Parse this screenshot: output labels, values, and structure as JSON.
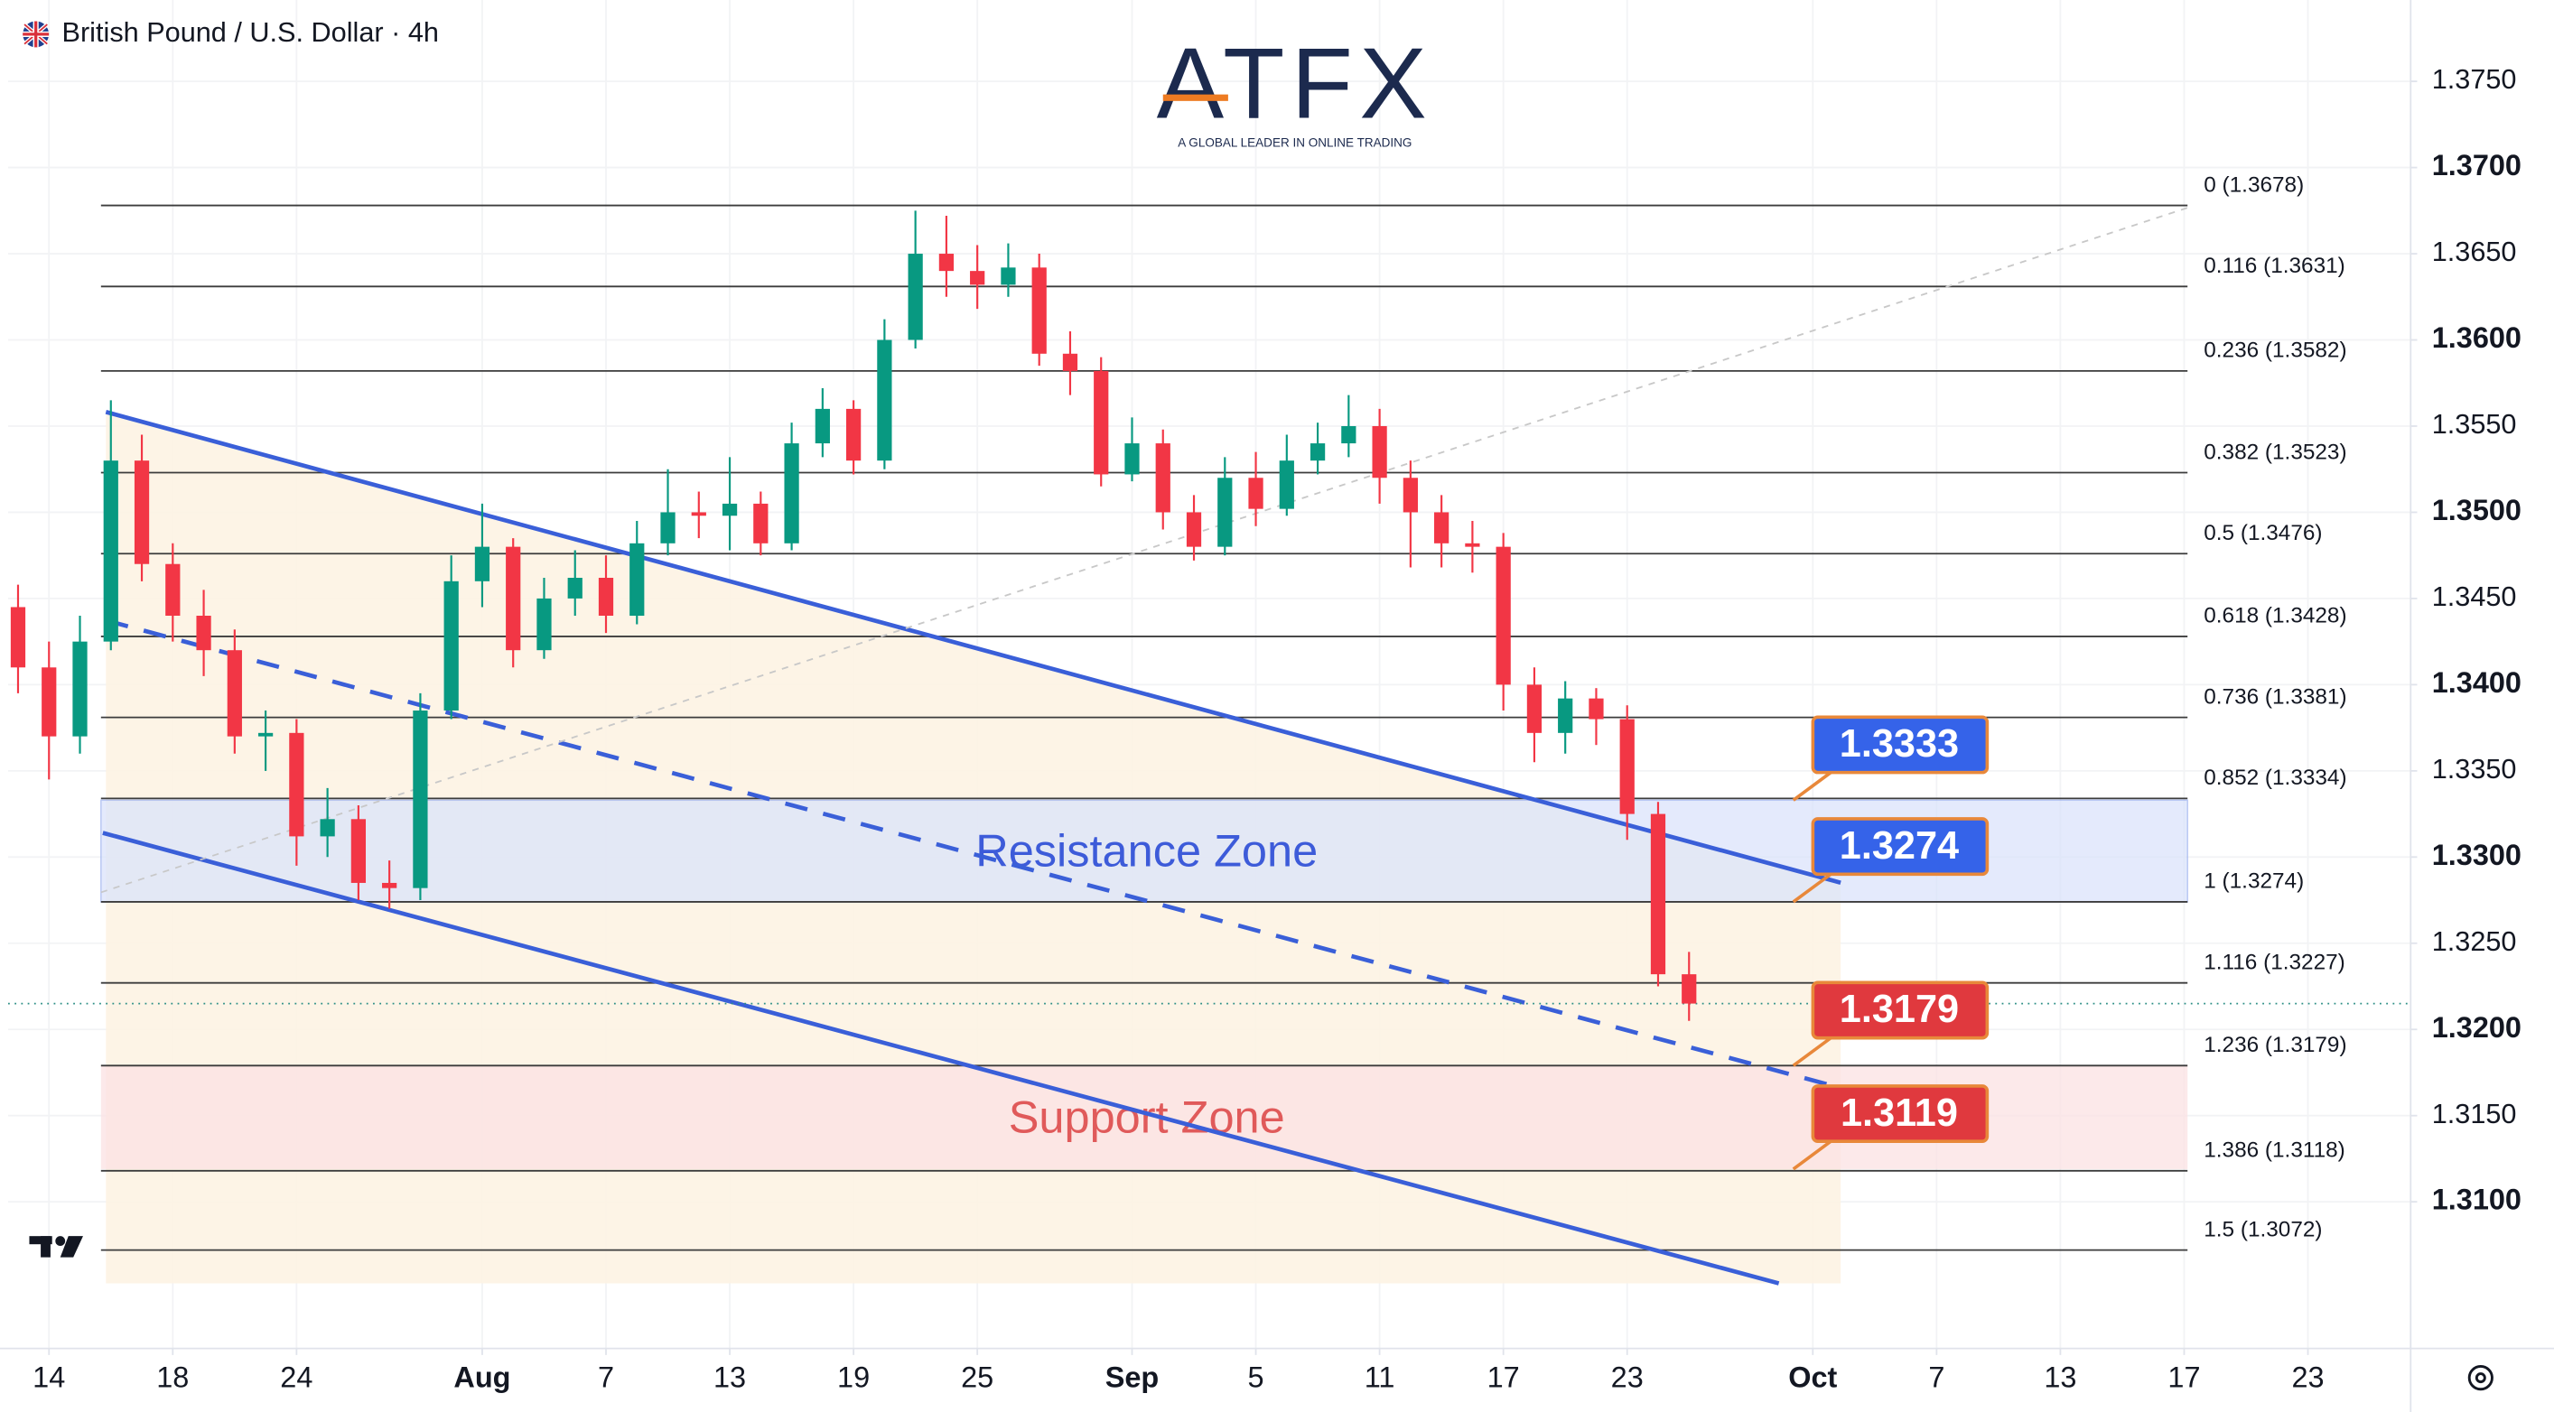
{
  "chart_data": {
    "type": "candlestick",
    "title": "British Pound / U.S. Dollar · 4h",
    "logo": "ATFX",
    "logo_tagline": "A GLOBAL LEADER IN ONLINE TRADING",
    "x": [
      -1,
      0,
      1,
      2,
      3,
      4,
      5,
      6,
      7,
      8,
      9,
      10,
      11,
      12,
      13,
      14,
      15,
      16,
      17,
      18,
      19,
      20,
      21,
      22,
      23,
      24,
      25,
      26,
      27,
      28,
      29,
      30,
      31,
      32,
      33,
      34,
      35,
      36,
      37,
      38,
      39,
      40,
      41,
      42,
      43,
      44,
      45,
      46,
      47,
      48,
      49,
      50,
      51,
      52,
      53
    ],
    "open": [
      1.3445,
      1.341,
      1.337,
      1.3425,
      1.353,
      1.347,
      1.344,
      1.342,
      1.337,
      1.3372,
      1.3312,
      1.3322,
      1.3285,
      1.3282,
      1.3385,
      1.346,
      1.348,
      1.342,
      1.345,
      1.3462,
      1.344,
      1.3482,
      1.35,
      1.3498,
      1.3505,
      1.3482,
      1.354,
      1.356,
      1.353,
      1.36,
      1.365,
      1.364,
      1.3632,
      1.3642,
      1.3592,
      1.3582,
      1.3522,
      1.354,
      1.35,
      1.348,
      1.352,
      1.3502,
      1.353,
      1.354,
      1.355,
      1.352,
      1.35,
      1.3482,
      1.348,
      1.34,
      1.3372,
      1.3392,
      1.338,
      1.3325,
      1.3232
    ],
    "high": [
      1.3458,
      1.3425,
      1.344,
      1.3565,
      1.3545,
      1.3482,
      1.3455,
      1.3432,
      1.3385,
      1.338,
      1.334,
      1.333,
      1.3298,
      1.3395,
      1.3475,
      1.3505,
      1.3485,
      1.3462,
      1.3478,
      1.3475,
      1.3495,
      1.3525,
      1.3512,
      1.3532,
      1.3512,
      1.3552,
      1.3572,
      1.3565,
      1.3612,
      1.3675,
      1.3672,
      1.3655,
      1.3656,
      1.365,
      1.3605,
      1.359,
      1.3555,
      1.3548,
      1.351,
      1.3532,
      1.3535,
      1.3545,
      1.3552,
      1.3568,
      1.356,
      1.353,
      1.351,
      1.3495,
      1.3488,
      1.341,
      1.3402,
      1.3398,
      1.3388,
      1.3332,
      1.3245
    ],
    "low": [
      1.3395,
      1.3345,
      1.336,
      1.342,
      1.346,
      1.3425,
      1.3405,
      1.336,
      1.335,
      1.3295,
      1.33,
      1.3275,
      1.327,
      1.3275,
      1.338,
      1.3445,
      1.341,
      1.3415,
      1.344,
      1.343,
      1.3435,
      1.3475,
      1.3485,
      1.3478,
      1.3475,
      1.3478,
      1.3532,
      1.3522,
      1.3525,
      1.3595,
      1.3625,
      1.3618,
      1.3625,
      1.3585,
      1.3568,
      1.3515,
      1.3518,
      1.349,
      1.3472,
      1.3475,
      1.3492,
      1.3498,
      1.3522,
      1.3532,
      1.3505,
      1.3468,
      1.3468,
      1.3465,
      1.3385,
      1.3355,
      1.336,
      1.3365,
      1.331,
      1.3225,
      1.3205
    ],
    "close": [
      1.341,
      1.337,
      1.3425,
      1.353,
      1.347,
      1.344,
      1.342,
      1.337,
      1.3372,
      1.3312,
      1.3322,
      1.3285,
      1.3282,
      1.3385,
      1.346,
      1.348,
      1.342,
      1.345,
      1.3462,
      1.344,
      1.3482,
      1.35,
      1.3498,
      1.3505,
      1.3482,
      1.354,
      1.356,
      1.353,
      1.36,
      1.365,
      1.364,
      1.3632,
      1.3642,
      1.3592,
      1.3582,
      1.3522,
      1.354,
      1.35,
      1.348,
      1.352,
      1.3502,
      1.353,
      1.354,
      1.355,
      1.352,
      1.35,
      1.3482,
      1.348,
      1.34,
      1.3372,
      1.3392,
      1.338,
      1.3325,
      1.3232,
      1.3215
    ],
    "up_color": "#089981",
    "down_color": "#f23645",
    "last_price": 1.3215,
    "xlim": [
      -1.32,
      76.32
    ],
    "ylim": [
      1.30149,
      1.37972
    ],
    "grid": true,
    "xticks": [
      {
        "value": 0,
        "label": "14"
      },
      {
        "value": 4,
        "label": "18"
      },
      {
        "value": 8,
        "label": "24"
      },
      {
        "value": 14,
        "label": "Aug"
      },
      {
        "value": 18,
        "label": "7"
      },
      {
        "value": 22,
        "label": "13"
      },
      {
        "value": 26,
        "label": "19"
      },
      {
        "value": 30,
        "label": "25"
      },
      {
        "value": 35,
        "label": "Sep"
      },
      {
        "value": 39,
        "label": "5"
      },
      {
        "value": 43,
        "label": "11"
      },
      {
        "value": 47,
        "label": "17"
      },
      {
        "value": 51,
        "label": "23"
      },
      {
        "value": 57,
        "label": "Oct"
      },
      {
        "value": 61,
        "label": "7"
      },
      {
        "value": 65,
        "label": "13"
      },
      {
        "value": 69,
        "label": "17"
      },
      {
        "value": 73,
        "label": "23"
      }
    ],
    "yticks": [
      {
        "value": 1.375,
        "label": "1.3750"
      },
      {
        "value": 1.37,
        "label": "1.3700"
      },
      {
        "value": 1.365,
        "label": "1.3650"
      },
      {
        "value": 1.36,
        "label": "1.3600"
      },
      {
        "value": 1.355,
        "label": "1.3550"
      },
      {
        "value": 1.35,
        "label": "1.3500"
      },
      {
        "value": 1.345,
        "label": "1.3450"
      },
      {
        "value": 1.34,
        "label": "1.3400"
      },
      {
        "value": 1.335,
        "label": "1.3350"
      },
      {
        "value": 1.33,
        "label": "1.3300"
      },
      {
        "value": 1.325,
        "label": "1.3250"
      },
      {
        "value": 1.32,
        "label": "1.3200"
      },
      {
        "value": 1.315,
        "label": "1.3150"
      },
      {
        "value": 1.31,
        "label": "1.3100"
      }
    ],
    "fib_levels": [
      {
        "value": 1.3678,
        "label": "0 (1.3678)"
      },
      {
        "value": 1.3631,
        "label": "0.116 (1.3631)"
      },
      {
        "value": 1.3582,
        "label": "0.236 (1.3582)"
      },
      {
        "value": 1.3523,
        "label": "0.382 (1.3523)"
      },
      {
        "value": 1.3476,
        "label": "0.5 (1.3476)"
      },
      {
        "value": 1.3428,
        "label": "0.618 (1.3428)"
      },
      {
        "value": 1.3381,
        "label": "0.736 (1.3381)"
      },
      {
        "value": 1.3334,
        "label": "0.852 (1.3334)"
      },
      {
        "value": 1.3274,
        "label": "1 (1.3274)"
      },
      {
        "value": 1.3227,
        "label": "1.116 (1.3227)"
      },
      {
        "value": 1.3179,
        "label": "1.236 (1.3179)"
      },
      {
        "value": 1.3118,
        "label": "1.386 (1.3118)"
      },
      {
        "value": 1.3072,
        "label": "1.5 (1.3072)"
      }
    ],
    "zones": [
      {
        "label": "Resistance Zone",
        "low": 1.3274,
        "high": 1.3333,
        "color": "#dbe4fb",
        "text_color": "#3d5bd9"
      },
      {
        "label": "Support Zone",
        "low": 1.3119,
        "high": 1.3179,
        "color": "#fbe2e3",
        "text_color": "#e05a5a"
      }
    ],
    "callouts": [
      {
        "value": 1.3333,
        "color": "#3563e9"
      },
      {
        "value": 1.3274,
        "color": "#3563e9"
      },
      {
        "value": 1.3179,
        "color": "#e0393e"
      },
      {
        "value": 1.3119,
        "color": "#e0393e"
      }
    ],
    "trendlines": [
      {
        "x": [
          1.84,
          57.9
        ],
        "y": [
          1.35582,
          1.32851
        ],
        "color": "#3a5fd8",
        "style": "solid"
      },
      {
        "x": [
          1.74,
          55.9
        ],
        "y": [
          1.3314,
          1.30527
        ],
        "color": "#3a5fd8",
        "style": "solid"
      },
      {
        "x": [
          1.84,
          57.9
        ],
        "y": [
          1.34373,
          1.31661
        ],
        "color": "#3a5fd8",
        "style": "dashed"
      },
      {
        "x": [
          1.68,
          69.1
        ],
        "y": [
          1.32795,
          1.36766
        ],
        "color": "#c8c8c8",
        "style": "dotted"
      }
    ]
  }
}
